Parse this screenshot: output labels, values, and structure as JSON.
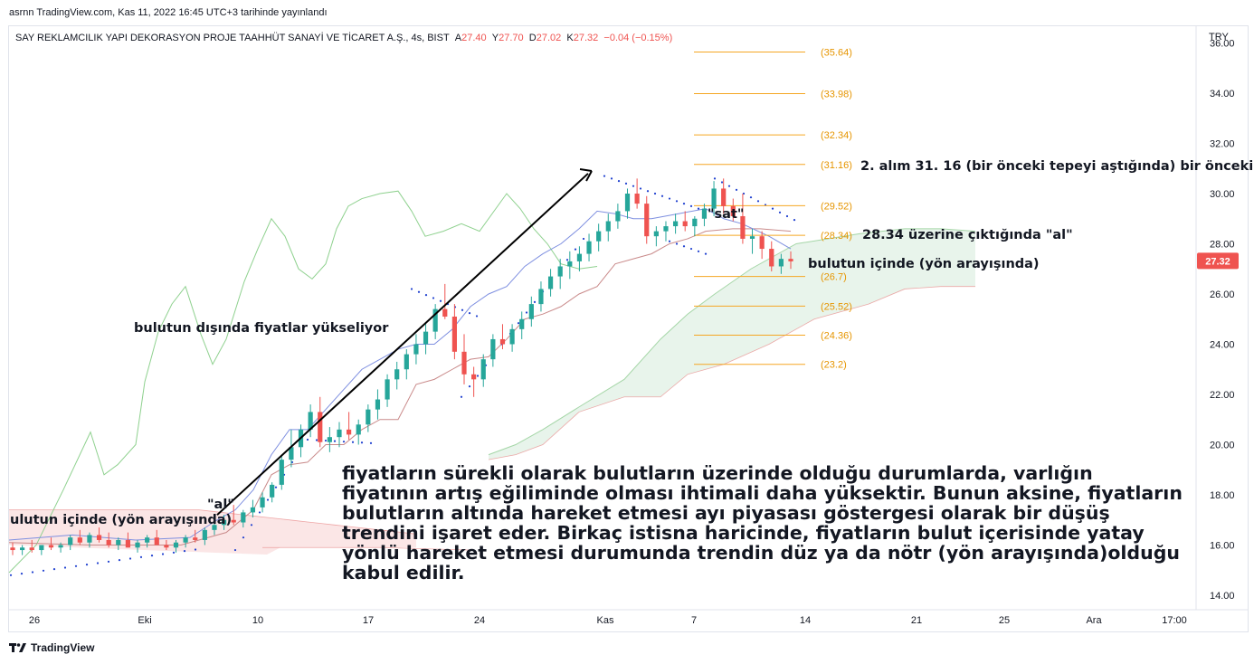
{
  "header": {
    "published": "asrnn TradingView.com, Kas 11, 2022 16:45 UTC+3 tarihinde yayınlandı"
  },
  "legend": {
    "symbol": "SAY REKLAMCILIK YAPI DEKORASYON PROJE TAAHHÜT SANAYİ VE TİCARET A.Ş., 4s, BIST",
    "open_label": "A",
    "open": "27.40",
    "high_label": "Y",
    "high": "27.70",
    "low_label": "D",
    "low": "27.02",
    "close_label": "K",
    "close": "27.32",
    "change": "−0.04 (−0.15%)"
  },
  "currency": "TRY",
  "last_price_badge": "27.32",
  "footer": {
    "brand": "TradingView"
  },
  "colors": {
    "up": "#26a69a",
    "down": "#ef5350",
    "fib": "#f5a623",
    "fib_text": "#e69500",
    "cloud_green": "#e6f3e9",
    "cloud_red": "#fbe3e3",
    "span_a": "#a5d6a7",
    "span_b": "#e57373",
    "tenkan": "#7e8fe0",
    "kijun": "#c98a8a",
    "chikou": "#8fd18f",
    "sar": "#1e3fcf"
  },
  "chart_data": {
    "type": "candlestick",
    "y_axis": {
      "ticks": [
        14,
        16,
        18,
        20,
        22,
        24,
        26,
        28,
        30,
        32,
        34,
        36
      ],
      "tick_labels": [
        "14.00",
        "16.00",
        "18.00",
        "20.00",
        "22.00",
        "24.00",
        "26.00",
        "28.00",
        "30.00",
        "32.00",
        "34.00",
        "36.00"
      ],
      "range": [
        13.5,
        36.3
      ]
    },
    "x_axis": {
      "tick_labels": [
        "26",
        "Eki",
        "10",
        "17",
        "24",
        "Kas",
        "7",
        "14",
        "21",
        "25",
        "Ara",
        "17:00"
      ]
    },
    "fib_levels": [
      "35.64",
      "33.98",
      "32.34",
      "31.16",
      "29.52",
      "28.34",
      "26.7",
      "25.52",
      "24.36",
      "23.2"
    ],
    "fib_values": [
      35.64,
      33.98,
      32.34,
      31.16,
      29.52,
      28.34,
      26.7,
      25.52,
      24.36,
      23.2
    ],
    "annotations": {
      "alim2": "2. alım 31. 16 (bir önceki tepeyi aştığında) bir önceki",
      "al_2834": "28.34 üzerine çıktığında \"al\"",
      "bulut_icinde_right": "bulutun içinde (yön arayışında)",
      "bulut_disinda": "bulutun dışında fiyatlar yükseliyor",
      "al": "\"al\"",
      "sat": "\"sat\"",
      "bulut_icinde_left": "ulutun içinde (yön arayışında)"
    },
    "note": "fiyatların sürekli olarak bulutların üzerinde olduğu durumlarda, varlığın fiyatının artış eğiliminde olması ihtimali daha yüksektir. Bunun aksine, fiyatların bulutların altında hareket etmesi ayı piyasası göstergesi olarak bir düşüş trendini işaret eder. Birkaç istisna haricinde, fiyatların bulut içerisinde yatay yönlü hareket etmesi durumunda trendin düz ya da nötr (yön arayışında)olduğu kabul edilir.",
    "candles": [
      [
        15.9,
        16.1,
        15.6,
        15.8
      ],
      [
        15.8,
        16.0,
        15.6,
        15.9
      ],
      [
        15.9,
        16.2,
        15.7,
        15.8
      ],
      [
        15.8,
        16.0,
        15.6,
        16.0
      ],
      [
        16.0,
        16.3,
        15.8,
        15.9
      ],
      [
        15.9,
        16.1,
        15.7,
        16.0
      ],
      [
        16.0,
        16.4,
        15.8,
        16.3
      ],
      [
        16.3,
        16.6,
        16.0,
        16.1
      ],
      [
        16.1,
        16.5,
        15.9,
        16.4
      ],
      [
        16.4,
        16.7,
        16.1,
        16.2
      ],
      [
        16.2,
        16.5,
        15.9,
        16.0
      ],
      [
        16.0,
        16.3,
        15.8,
        16.2
      ],
      [
        16.2,
        16.5,
        15.9,
        15.9
      ],
      [
        15.9,
        16.2,
        15.7,
        16.1
      ],
      [
        16.1,
        16.4,
        15.9,
        16.3
      ],
      [
        16.3,
        16.6,
        16.0,
        16.0
      ],
      [
        16.0,
        16.2,
        15.8,
        15.9
      ],
      [
        15.9,
        16.2,
        15.7,
        16.1
      ],
      [
        16.1,
        16.4,
        15.9,
        16.3
      ],
      [
        16.3,
        16.6,
        16.1,
        16.2
      ],
      [
        16.2,
        16.7,
        16.0,
        16.6
      ],
      [
        16.6,
        17.0,
        16.4,
        16.8
      ],
      [
        16.8,
        17.2,
        16.6,
        17.0
      ],
      [
        17.0,
        17.6,
        16.8,
        16.9
      ],
      [
        16.9,
        17.4,
        16.7,
        17.3
      ],
      [
        17.3,
        17.8,
        17.1,
        17.5
      ],
      [
        17.5,
        18.1,
        17.3,
        17.9
      ],
      [
        17.9,
        18.5,
        17.7,
        18.4
      ],
      [
        18.4,
        19.6,
        18.2,
        19.4
      ],
      [
        19.4,
        20.6,
        19.1,
        19.9
      ],
      [
        19.9,
        20.8,
        19.5,
        20.6
      ],
      [
        20.6,
        21.6,
        20.3,
        21.3
      ],
      [
        21.3,
        21.9,
        19.9,
        20.1
      ],
      [
        20.1,
        20.7,
        19.7,
        20.3
      ],
      [
        20.3,
        20.9,
        19.9,
        20.6
      ],
      [
        20.6,
        21.3,
        20.2,
        20.4
      ],
      [
        20.4,
        21.0,
        20.0,
        20.8
      ],
      [
        20.8,
        21.6,
        20.5,
        21.4
      ],
      [
        21.4,
        22.2,
        21.0,
        21.8
      ],
      [
        21.8,
        22.8,
        21.5,
        22.6
      ],
      [
        22.6,
        23.3,
        22.2,
        23.0
      ],
      [
        23.0,
        23.8,
        22.6,
        23.6
      ],
      [
        23.6,
        24.4,
        23.2,
        24.0
      ],
      [
        24.0,
        24.8,
        23.6,
        24.5
      ],
      [
        24.5,
        25.6,
        24.2,
        25.4
      ],
      [
        25.4,
        26.4,
        25.0,
        25.1
      ],
      [
        25.1,
        25.6,
        23.4,
        23.7
      ],
      [
        23.7,
        24.4,
        22.4,
        22.8
      ],
      [
        22.8,
        23.1,
        21.9,
        22.6
      ],
      [
        22.6,
        23.6,
        22.3,
        23.4
      ],
      [
        23.4,
        24.4,
        23.1,
        24.2
      ],
      [
        24.2,
        24.8,
        23.8,
        24.0
      ],
      [
        24.0,
        24.8,
        23.7,
        24.6
      ],
      [
        24.6,
        25.3,
        24.2,
        25.0
      ],
      [
        25.0,
        25.9,
        24.7,
        25.6
      ],
      [
        25.6,
        26.5,
        25.3,
        26.2
      ],
      [
        26.2,
        27.0,
        25.9,
        26.7
      ],
      [
        26.7,
        27.4,
        26.2,
        27.1
      ],
      [
        27.1,
        27.7,
        26.6,
        27.3
      ],
      [
        27.3,
        27.9,
        26.9,
        27.6
      ],
      [
        27.6,
        28.4,
        27.3,
        28.1
      ],
      [
        28.1,
        28.8,
        27.7,
        28.5
      ],
      [
        28.5,
        29.2,
        28.1,
        28.9
      ],
      [
        28.9,
        29.6,
        28.6,
        29.3
      ],
      [
        29.3,
        30.2,
        29.0,
        30.0
      ],
      [
        30.0,
        30.6,
        29.4,
        29.6
      ],
      [
        29.6,
        29.9,
        28.0,
        28.3
      ],
      [
        28.3,
        28.7,
        27.9,
        28.5
      ],
      [
        28.5,
        28.9,
        28.1,
        28.7
      ],
      [
        28.7,
        29.2,
        28.4,
        28.9
      ],
      [
        28.9,
        29.3,
        28.5,
        28.7
      ],
      [
        28.7,
        29.1,
        28.3,
        29.0
      ],
      [
        29.0,
        29.6,
        28.7,
        29.4
      ],
      [
        29.4,
        30.5,
        29.1,
        30.2
      ],
      [
        30.2,
        30.6,
        29.2,
        29.5
      ],
      [
        29.5,
        29.8,
        28.9,
        29.1
      ],
      [
        29.1,
        30.0,
        28.0,
        28.2
      ],
      [
        28.2,
        28.6,
        27.6,
        28.3
      ],
      [
        28.3,
        28.5,
        27.4,
        27.8
      ],
      [
        27.8,
        28.1,
        26.9,
        27.1
      ],
      [
        27.1,
        27.6,
        26.8,
        27.4
      ],
      [
        27.4,
        27.7,
        27.0,
        27.3
      ]
    ],
    "series_names": []
  }
}
